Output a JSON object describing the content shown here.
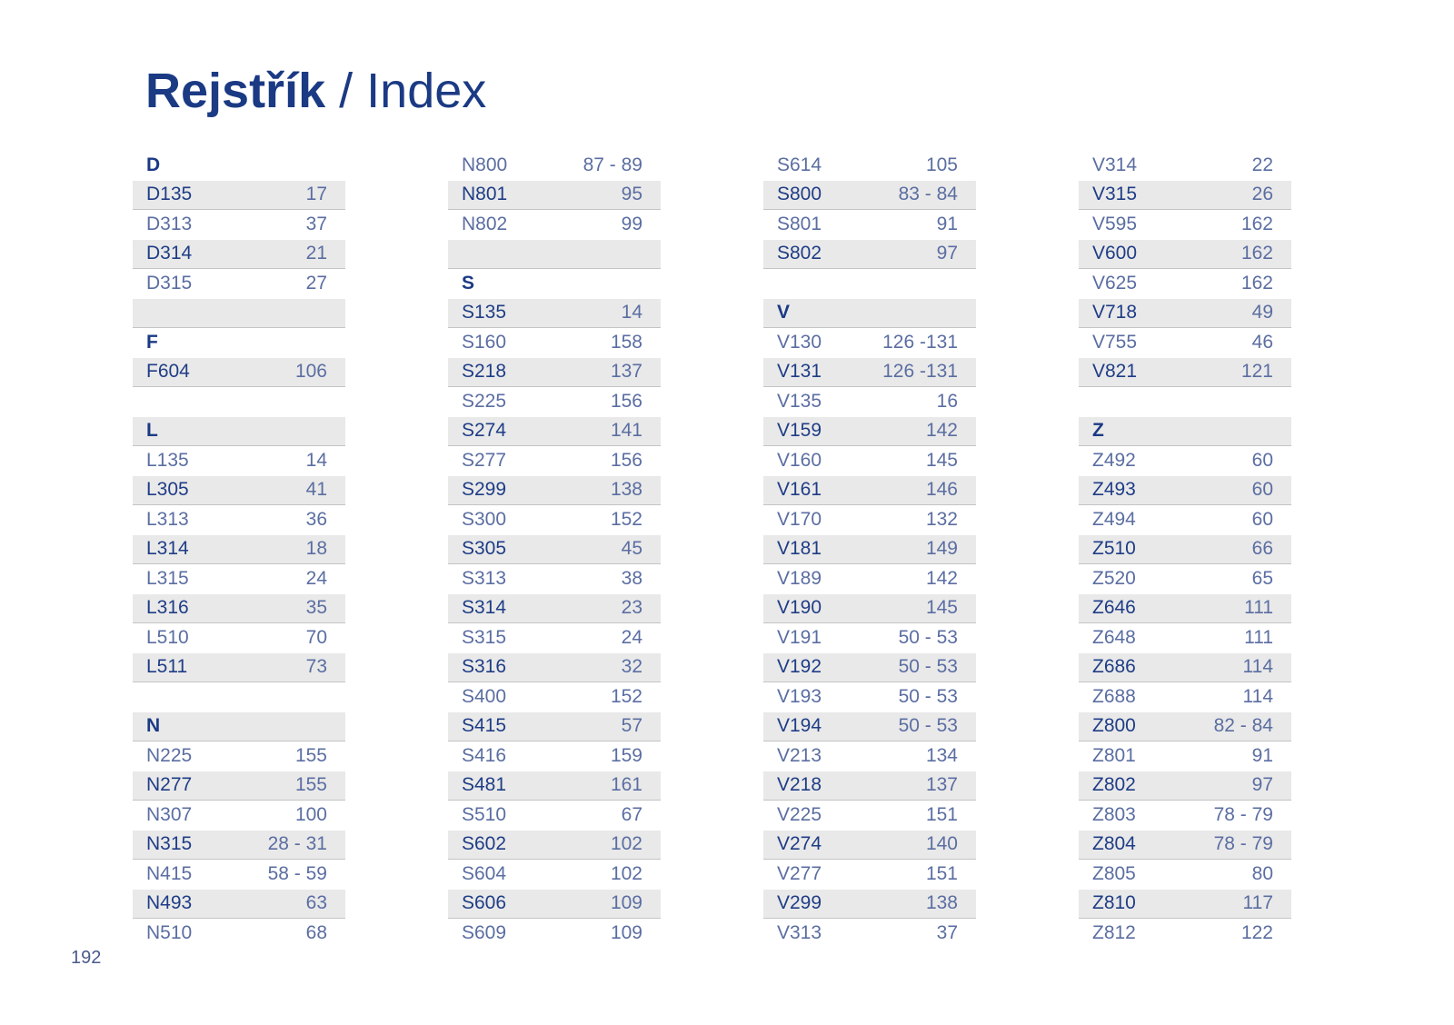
{
  "title": {
    "bold": "Rejstřík",
    "separator": "/",
    "rest": "Index"
  },
  "page_number": "192",
  "columns": [
    [
      {
        "type": "header",
        "code": "D"
      },
      {
        "code": "D135",
        "page": "17"
      },
      {
        "code": "D313",
        "page": "37"
      },
      {
        "code": "D314",
        "page": "21"
      },
      {
        "code": "D315",
        "page": "27"
      },
      {
        "type": "blank"
      },
      {
        "type": "header",
        "code": "F"
      },
      {
        "code": "F604",
        "page": "106"
      },
      {
        "type": "blank"
      },
      {
        "type": "header",
        "code": "L"
      },
      {
        "code": "L135",
        "page": "14"
      },
      {
        "code": "L305",
        "page": "41"
      },
      {
        "code": "L313",
        "page": "36"
      },
      {
        "code": "L314",
        "page": "18"
      },
      {
        "code": "L315",
        "page": "24"
      },
      {
        "code": "L316",
        "page": "35"
      },
      {
        "code": "L510",
        "page": "70"
      },
      {
        "code": "L511",
        "page": "73"
      },
      {
        "type": "blank"
      },
      {
        "type": "header",
        "code": "N"
      },
      {
        "code": "N225",
        "page": "155"
      },
      {
        "code": "N277",
        "page": "155"
      },
      {
        "code": "N307",
        "page": "100"
      },
      {
        "code": "N315",
        "page": "28 - 31"
      },
      {
        "code": "N415",
        "page": "58 - 59"
      },
      {
        "code": "N493",
        "page": "63"
      },
      {
        "code": "N510",
        "page": "68"
      }
    ],
    [
      {
        "code": "N800",
        "page": "87 - 89"
      },
      {
        "code": "N801",
        "page": "95"
      },
      {
        "code": "N802",
        "page": "99"
      },
      {
        "type": "blank"
      },
      {
        "type": "header",
        "code": "S"
      },
      {
        "code": "S135",
        "page": "14"
      },
      {
        "code": "S160",
        "page": "158"
      },
      {
        "code": "S218",
        "page": "137"
      },
      {
        "code": "S225",
        "page": "156"
      },
      {
        "code": "S274",
        "page": "141"
      },
      {
        "code": "S277",
        "page": "156"
      },
      {
        "code": "S299",
        "page": "138"
      },
      {
        "code": "S300",
        "page": "152"
      },
      {
        "code": "S305",
        "page": "45"
      },
      {
        "code": "S313",
        "page": "38"
      },
      {
        "code": "S314",
        "page": "23"
      },
      {
        "code": "S315",
        "page": "24"
      },
      {
        "code": "S316",
        "page": "32"
      },
      {
        "code": "S400",
        "page": "152"
      },
      {
        "code": "S415",
        "page": "57"
      },
      {
        "code": "S416",
        "page": "159"
      },
      {
        "code": "S481",
        "page": "161"
      },
      {
        "code": "S510",
        "page": "67"
      },
      {
        "code": "S602",
        "page": "102"
      },
      {
        "code": "S604",
        "page": "102"
      },
      {
        "code": "S606",
        "page": "109"
      },
      {
        "code": "S609",
        "page": "109"
      }
    ],
    [
      {
        "code": "S614",
        "page": "105"
      },
      {
        "code": "S800",
        "page": "83 - 84"
      },
      {
        "code": "S801",
        "page": "91"
      },
      {
        "code": "S802",
        "page": "97"
      },
      {
        "type": "blank"
      },
      {
        "type": "header",
        "code": "V"
      },
      {
        "code": "V130",
        "page": "126 -131"
      },
      {
        "code": "V131",
        "page": "126 -131"
      },
      {
        "code": "V135",
        "page": "16"
      },
      {
        "code": "V159",
        "page": "142"
      },
      {
        "code": "V160",
        "page": "145"
      },
      {
        "code": "V161",
        "page": "146"
      },
      {
        "code": "V170",
        "page": "132"
      },
      {
        "code": "V181",
        "page": "149"
      },
      {
        "code": "V189",
        "page": "142"
      },
      {
        "code": "V190",
        "page": "145"
      },
      {
        "code": "V191",
        "page": "50 - 53"
      },
      {
        "code": "V192",
        "page": "50 - 53"
      },
      {
        "code": "V193",
        "page": "50 - 53"
      },
      {
        "code": "V194",
        "page": "50 - 53"
      },
      {
        "code": "V213",
        "page": "134"
      },
      {
        "code": "V218",
        "page": "137"
      },
      {
        "code": "V225",
        "page": "151"
      },
      {
        "code": "V274",
        "page": "140"
      },
      {
        "code": "V277",
        "page": "151"
      },
      {
        "code": "V299",
        "page": "138"
      },
      {
        "code": "V313",
        "page": "37"
      }
    ],
    [
      {
        "code": "V314",
        "page": "22"
      },
      {
        "code": "V315",
        "page": "26"
      },
      {
        "code": "V595",
        "page": "162"
      },
      {
        "code": "V600",
        "page": "162"
      },
      {
        "code": "V625",
        "page": "162"
      },
      {
        "code": "V718",
        "page": "49"
      },
      {
        "code": "V755",
        "page": "46"
      },
      {
        "code": "V821",
        "page": "121"
      },
      {
        "type": "blank"
      },
      {
        "type": "header",
        "code": "Z"
      },
      {
        "code": "Z492",
        "page": "60"
      },
      {
        "code": "Z493",
        "page": "60"
      },
      {
        "code": "Z494",
        "page": "60"
      },
      {
        "code": "Z510",
        "page": "66"
      },
      {
        "code": "Z520",
        "page": "65"
      },
      {
        "code": "Z646",
        "page": "111"
      },
      {
        "code": "Z648",
        "page": "111"
      },
      {
        "code": "Z686",
        "page": "114"
      },
      {
        "code": "Z688",
        "page": "114"
      },
      {
        "code": "Z800",
        "page": "82 - 84"
      },
      {
        "code": "Z801",
        "page": "91"
      },
      {
        "code": "Z802",
        "page": "97"
      },
      {
        "code": "Z803",
        "page": "78 - 79"
      },
      {
        "code": "Z804",
        "page": "78 - 79"
      },
      {
        "code": "Z805",
        "page": "80"
      },
      {
        "code": "Z810",
        "page": "117"
      },
      {
        "code": "Z812",
        "page": "122"
      }
    ]
  ]
}
